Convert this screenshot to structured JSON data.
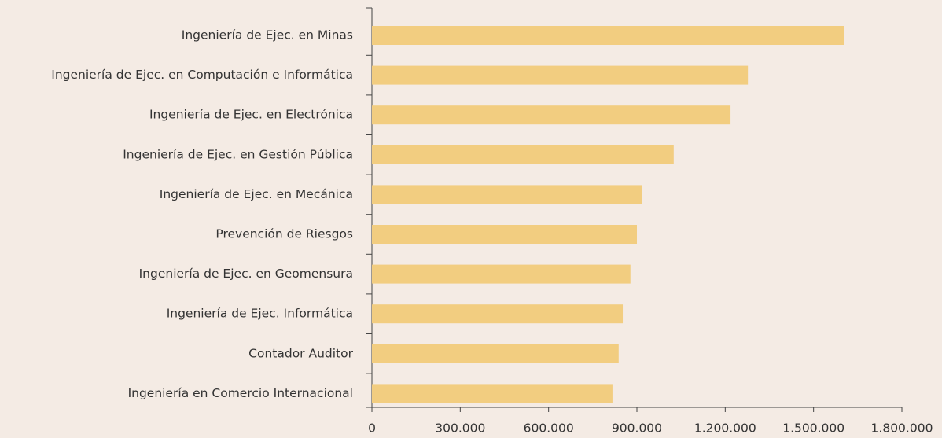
{
  "chart_data": {
    "type": "bar",
    "orientation": "horizontal",
    "categories": [
      "Ingeniería de Ejec. en Minas",
      "Ingeniería de Ejec. en Computación e Informática",
      "Ingeniería de Ejec. en Electrónica",
      "Ingeniería de Ejec. en Gestión Pública",
      "Ingeniería de Ejec. en Mecánica",
      "Prevención de Riesgos",
      "Ingeniería de Ejec. en Geomensura",
      "Ingeniería de Ejec. Informática",
      "Contador Auditor",
      "Ingeniería en Comercio Internacional"
    ],
    "values": [
      1605000,
      1277000,
      1218000,
      1025000,
      918000,
      900000,
      878000,
      852000,
      838000,
      817000
    ],
    "color": "#f2cd80",
    "xlim": [
      0,
      1800000
    ],
    "xticks": [
      0,
      {
        "value": 300000,
        "label": "300.000"
      },
      {
        "value": 600000,
        "label": "600.000"
      },
      {
        "value": 900000,
        "label": "900.000"
      },
      {
        "value": 1200000,
        "label": "1.200.000"
      },
      {
        "value": 1500000,
        "label": "1.500.000"
      },
      {
        "value": 1800000,
        "label": "1.800.000"
      }
    ],
    "grid": false
  }
}
